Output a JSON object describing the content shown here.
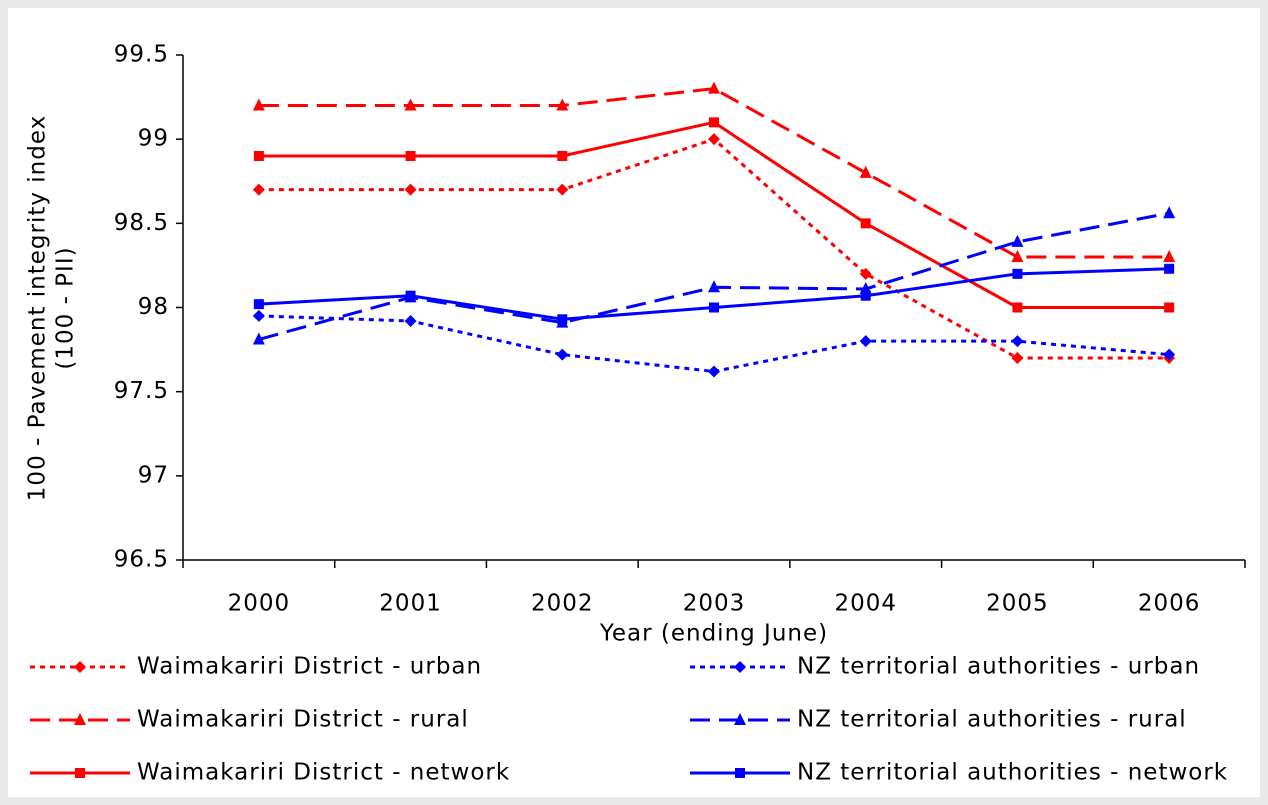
{
  "chart_data": {
    "type": "line",
    "y_label": [
      "100 - Pavement integrity index",
      "(100 - PII)"
    ],
    "x_label": "Year (ending June)",
    "categories": [
      "2000",
      "2001",
      "2002",
      "2003",
      "2004",
      "2005",
      "2006"
    ],
    "ylim": [
      96.5,
      99.5
    ],
    "yticks": [
      96.5,
      97,
      97.5,
      98,
      98.5,
      99,
      99.5
    ],
    "grid": false,
    "legend_position": "bottom",
    "series": [
      {
        "name": "Waimakariri District - urban",
        "color": "#ff0000",
        "dash": "dotted",
        "marker": "diamond",
        "values": [
          98.7,
          98.7,
          98.7,
          99.0,
          98.2,
          97.7,
          97.7
        ]
      },
      {
        "name": "Waimakariri District - rural",
        "color": "#ff0000",
        "dash": "dashed",
        "marker": "triangle",
        "values": [
          99.2,
          99.2,
          99.2,
          99.3,
          98.8,
          98.3,
          98.3
        ]
      },
      {
        "name": "Waimakariri District - network",
        "color": "#ff0000",
        "dash": "solid",
        "marker": "square",
        "values": [
          98.9,
          98.9,
          98.9,
          99.1,
          98.5,
          98.0,
          98.0
        ]
      },
      {
        "name": "NZ territorial authorities - urban",
        "color": "#0000ff",
        "dash": "dotted",
        "marker": "diamond",
        "values": [
          97.95,
          97.92,
          97.72,
          97.62,
          97.8,
          97.8,
          97.72
        ]
      },
      {
        "name": "NZ territorial authorities - rural",
        "color": "#0000ff",
        "dash": "dashed",
        "marker": "triangle",
        "values": [
          97.81,
          98.06,
          97.91,
          98.12,
          98.11,
          98.39,
          98.56
        ]
      },
      {
        "name": "NZ territorial authorities - network",
        "color": "#0000ff",
        "dash": "solid",
        "marker": "square",
        "values": [
          98.02,
          98.07,
          97.93,
          98.0,
          98.07,
          98.2,
          98.23
        ]
      }
    ]
  }
}
